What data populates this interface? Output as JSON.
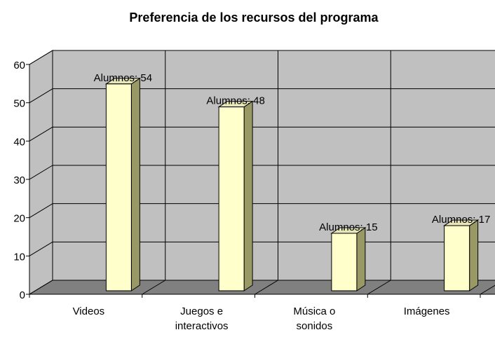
{
  "chart_data": {
    "type": "bar3d",
    "title": "Preferencia de los recursos del programa",
    "categories": [
      "Videos",
      "Juegos e interactivos",
      "Música o sonidos",
      "Imágenes"
    ],
    "values": [
      54,
      48,
      15,
      17
    ],
    "value_labels": [
      "Alumnos: 54",
      "Alumnos: 48",
      "Alumnos: 15",
      "Alumnos: 17"
    ],
    "color": "#ffffcc",
    "ylim": [
      0,
      60
    ],
    "yticks": [
      0,
      10,
      20,
      30,
      40,
      50,
      60
    ],
    "grid": true
  }
}
